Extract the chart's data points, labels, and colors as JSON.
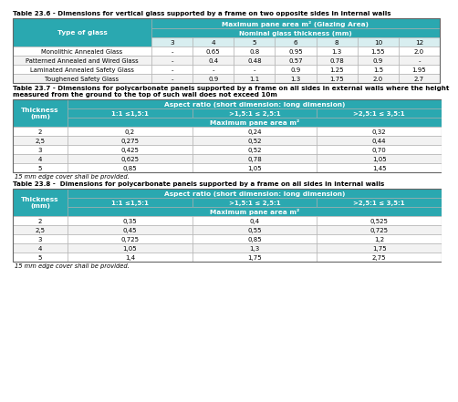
{
  "header_color": "#2aa8b0",
  "header_text_color": "#ffffff",
  "border_color": "#aaaaaa",
  "dark_border_color": "#666666",
  "table1_title": "Table 23.6 - Dimensions for vertical glass supported by a frame on two opposite sides in internal walls",
  "table1_col_header2": "Maximum pane area m² (Glazing Area)",
  "table1_col_header3": "Nominal glass thickness (mm)",
  "table1_thickness_cols": [
    "3",
    "4",
    "5",
    "6",
    "8",
    "10",
    "12"
  ],
  "table1_rows": [
    [
      "Monolithic Annealed Glass",
      "-",
      "0.65",
      "0.8",
      "0.95",
      "1.3",
      "1.55",
      "2.0"
    ],
    [
      "Patterned Annealed and Wired Glass",
      "-",
      "0.4",
      "0.48",
      "0.57",
      "0.78",
      "0.9",
      "-"
    ],
    [
      "Laminated Annealed Safety Glass",
      "-",
      "-",
      "-",
      "0.9",
      "1.25",
      "1.5",
      "1.95"
    ],
    [
      "Toughened Safety Glass",
      "-",
      "0.9",
      "1.1",
      "1.3",
      "1.75",
      "2.0",
      "2.7"
    ]
  ],
  "table2_title_line1": "Table 23.7 - Dimensions for polycarbonate panels supported by a frame on all sides in external walls where the height",
  "table2_title_line2": "measured from the ground to the top of such wall does not exceed 10m",
  "table2_col_header1": "Thickness\n(mm)",
  "table2_col_header2": "Aspect ratio (short dimension: long dimension)",
  "table2_col_header3": "Maximum pane area m²",
  "table2_aspect_cols": [
    "1:1 ≤1,5:1",
    ">1,5:1 ≤ 2,5:1",
    ">2,5:1 ≤ 3,5:1"
  ],
  "table2_rows": [
    [
      "2",
      "0,2",
      "0,24",
      "0,32"
    ],
    [
      "2,5",
      "0,275",
      "0,52",
      "0,44"
    ],
    [
      "3",
      "0,425",
      "0,52",
      "0,70"
    ],
    [
      "4",
      "0,625",
      "0,78",
      "1,05"
    ],
    [
      "5",
      "0,85",
      "1,05",
      "1,45"
    ]
  ],
  "table2_footnote": "15 mm edge cover shall be provided.",
  "table3_title": "Table 23.8 -  Dimensions for polycarbonate panels supported by a frame on all sides in internal walls",
  "table3_col_header1": "Thickness\n(mm)",
  "table3_col_header2": "Aspect ratio (short dimension: long dimension)",
  "table3_col_header3": "Maximum pane area m²",
  "table3_aspect_cols": [
    "1:1 ≤1,5:1",
    ">1,5:1 ≤ 2,5:1",
    ">2,5:1 ≤ 3,5:1"
  ],
  "table3_rows": [
    [
      "2",
      "0,35",
      "0,4",
      "0,525"
    ],
    [
      "2,5",
      "0,45",
      "0,55",
      "0,725"
    ],
    [
      "3",
      "0,725",
      "0,85",
      "1,2"
    ],
    [
      "4",
      "1,05",
      "1,3",
      "1,75"
    ],
    [
      "5",
      "1,4",
      "1,75",
      "2,75"
    ]
  ],
  "table3_footnote": "15 mm edge cover shall be provided."
}
